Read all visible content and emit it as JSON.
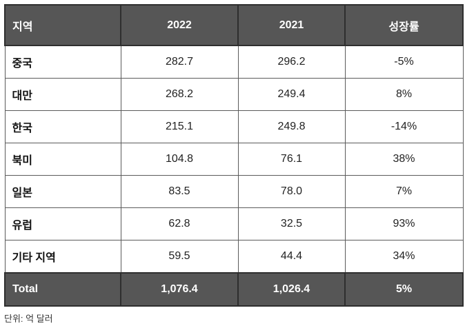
{
  "table": {
    "headers": [
      "지역",
      "2022",
      "2021",
      "성장률"
    ],
    "rows": [
      [
        "중국",
        "282.7",
        "296.2",
        "-5%"
      ],
      [
        "대만",
        "268.2",
        "249.4",
        "8%"
      ],
      [
        "한국",
        "215.1",
        "249.8",
        "-14%"
      ],
      [
        "북미",
        "104.8",
        "76.1",
        "38%"
      ],
      [
        "일본",
        "83.5",
        "78.0",
        "7%"
      ],
      [
        "유럽",
        "62.8",
        "32.5",
        "93%"
      ],
      [
        "기타 지역",
        "59.5",
        "44.4",
        "34%"
      ]
    ],
    "total": [
      "Total",
      "1,076.4",
      "1,026.4",
      "5%"
    ]
  },
  "unit_note": "단위: 억 달러",
  "colors": {
    "header_bg": "#565656",
    "header_text": "#ffffff",
    "border": "#5a5a5a"
  }
}
